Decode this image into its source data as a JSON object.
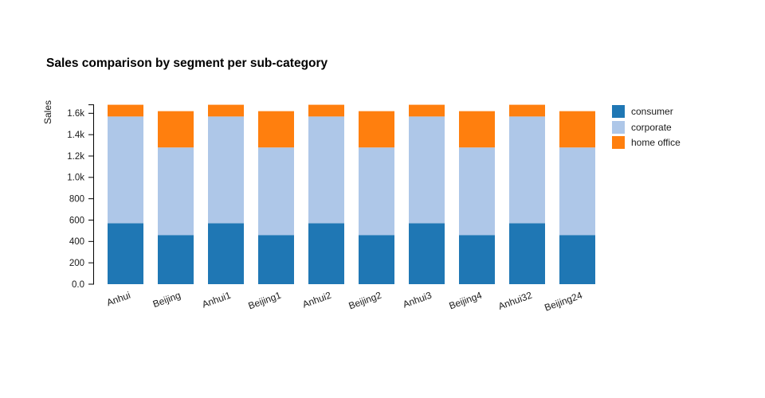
{
  "title": "Sales comparison by segment per sub-category",
  "chart_data": {
    "type": "bar",
    "stacked": true,
    "title": "Sales comparison by segment per sub-category",
    "xlabel": "",
    "ylabel": "Sales",
    "categories": [
      "Anhui",
      "Beijing",
      "Anhui1",
      "Beijing1",
      "Anhui2",
      "Beijing2",
      "Anhui3",
      "Beijing4",
      "Anhui32",
      "Beijing24"
    ],
    "series": [
      {
        "name": "consumer",
        "color": "#1f77b4",
        "values": [
          570,
          460,
          570,
          460,
          570,
          460,
          570,
          460,
          570,
          460
        ]
      },
      {
        "name": "corporate",
        "color": "#aec7e8",
        "values": [
          1000,
          820,
          1000,
          820,
          1000,
          820,
          1000,
          820,
          1000,
          820
        ]
      },
      {
        "name": "home office",
        "color": "#ff7f0e",
        "values": [
          110,
          340,
          110,
          340,
          110,
          340,
          110,
          340,
          110,
          340
        ]
      }
    ],
    "totals_by_category_type": {
      "Anhui": 1680,
      "Beijing": 1620
    },
    "ylim": [
      0,
      1680
    ],
    "yticks": {
      "values": [
        0,
        200,
        400,
        600,
        800,
        1000,
        1200,
        1400,
        1600
      ],
      "labels": [
        "0.0",
        "200",
        "400",
        "600",
        "800",
        "1.0k",
        "1.2k",
        "1.4k",
        "1.6k"
      ]
    },
    "grid": false,
    "legend_position": "right",
    "x_tick_rotation": -20,
    "background": "#ffffff",
    "axis_color": "#000000",
    "text_color": "#1a1a1a"
  }
}
